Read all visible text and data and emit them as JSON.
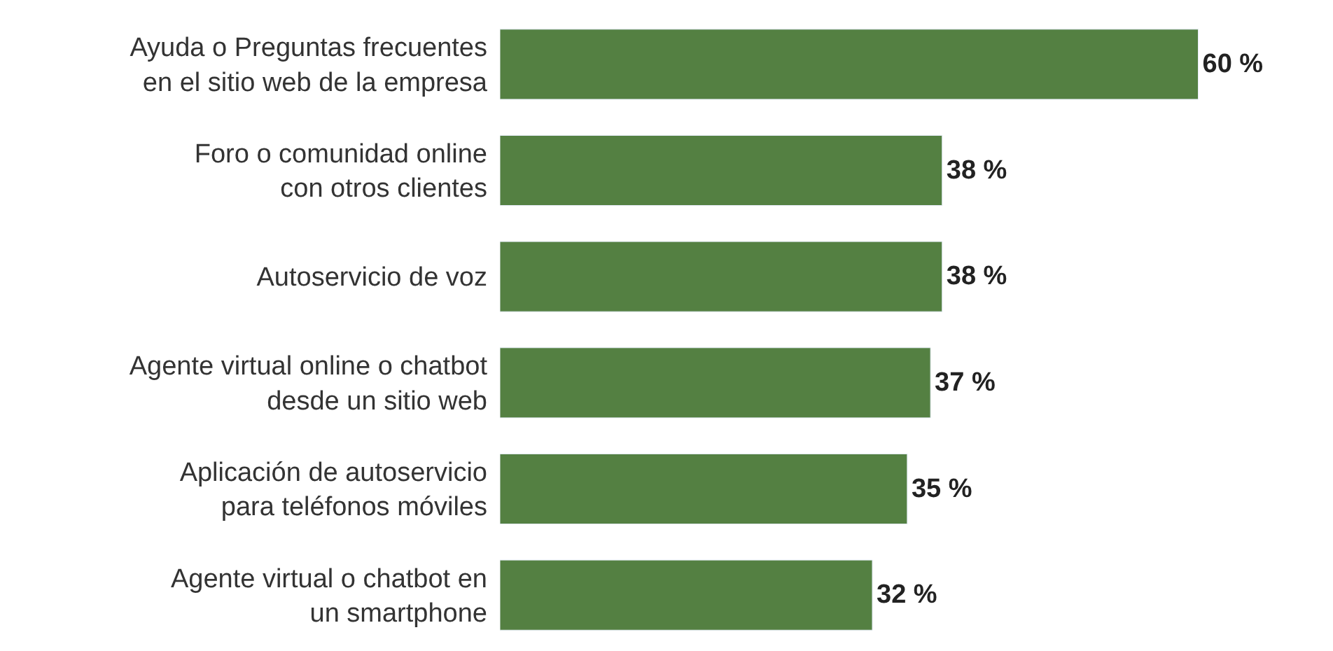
{
  "chart_data": {
    "type": "bar",
    "orientation": "horizontal",
    "categories": [
      "Ayuda o Preguntas frecuentes\nen el sitio web de la empresa",
      "Foro o comunidad online\ncon otros clientes",
      "Autoservicio de voz",
      "Agente virtual online o chatbot\ndesde un sitio web",
      "Aplicación de autoservicio\npara teléfonos móviles",
      "Agente virtual o chatbot en\nun smartphone"
    ],
    "values": [
      60,
      38,
      38,
      37,
      35,
      32
    ],
    "value_labels": [
      "60 %",
      "38 %",
      "38 %",
      "37 %",
      "35 %",
      "32 %"
    ],
    "color": "#548042",
    "tick_labels": "y",
    "legend": false
  }
}
